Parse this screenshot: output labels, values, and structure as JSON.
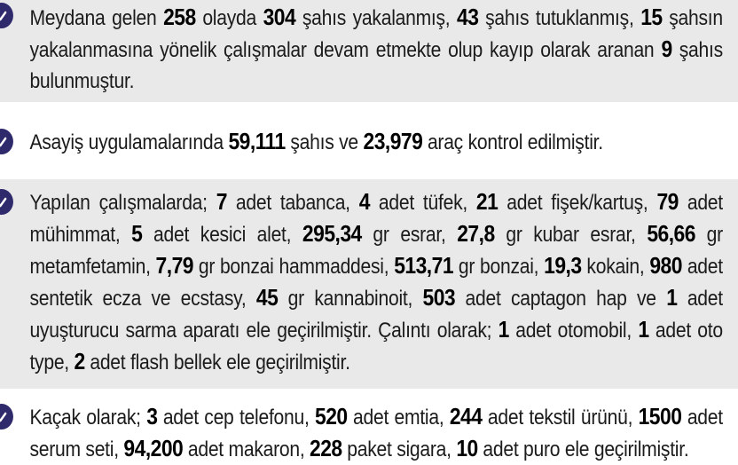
{
  "page": {
    "language": "tr",
    "background": "#ffffff",
    "shaded_block_color": "#e9e9e9",
    "badge_color": "#2f2a6c",
    "text_color": "#1b1b1b",
    "bold_text_color": "#000000",
    "badge_icon": "check-circle-icon"
  },
  "bullets": [
    {
      "shaded": true,
      "segments": [
        {
          "t": "Meydana gelen "
        },
        {
          "t": "258",
          "b": true
        },
        {
          "t": " olayda "
        },
        {
          "t": "304",
          "b": true
        },
        {
          "t": " şahıs yakalanmış, "
        },
        {
          "t": "43",
          "b": true
        },
        {
          "t": " şahıs tutuklanmış, "
        },
        {
          "t": "15",
          "b": true
        },
        {
          "t": " şahsın yakalanmasına yönelik çalışmalar devam etmekte olup kayıp olarak aranan "
        },
        {
          "t": "9",
          "b": true
        },
        {
          "t": " şahıs bulunmuştur."
        }
      ]
    },
    {
      "shaded": false,
      "segments": [
        {
          "t": "Asayiş uygulamalarında "
        },
        {
          "t": "59,111",
          "b": true
        },
        {
          "t": " şahıs ve "
        },
        {
          "t": "23,979",
          "b": true
        },
        {
          "t": " araç kontrol edilmiştir."
        }
      ]
    },
    {
      "shaded": true,
      "segments": [
        {
          "t": "Yapılan çalışmalarda; "
        },
        {
          "t": "7",
          "b": true
        },
        {
          "t": " adet tabanca, "
        },
        {
          "t": "4",
          "b": true
        },
        {
          "t": " adet tüfek, "
        },
        {
          "t": "21",
          "b": true
        },
        {
          "t": " adet fişek/kartuş, "
        },
        {
          "t": "79",
          "b": true
        },
        {
          "t": " adet mühimmat, "
        },
        {
          "t": "5",
          "b": true
        },
        {
          "t": " adet kesici alet, "
        },
        {
          "t": "295,34",
          "b": true
        },
        {
          "t": " gr esrar, "
        },
        {
          "t": "27,8",
          "b": true
        },
        {
          "t": " gr kubar esrar, "
        },
        {
          "t": "56,66",
          "b": true
        },
        {
          "t": " gr metamfetamin, "
        },
        {
          "t": "7,79",
          "b": true
        },
        {
          "t": " gr bonzai hammaddesi, "
        },
        {
          "t": "513,71",
          "b": true
        },
        {
          "t": " gr bonzai, "
        },
        {
          "t": "19,3",
          "b": true
        },
        {
          "t": " kokain, "
        },
        {
          "t": "980",
          "b": true
        },
        {
          "t": " adet sentetik ecza ve ecstasy, "
        },
        {
          "t": "45",
          "b": true
        },
        {
          "t": " gr kannabinoit, "
        },
        {
          "t": "503",
          "b": true
        },
        {
          "t": " adet captagon hap ve "
        },
        {
          "t": "1",
          "b": true
        },
        {
          "t": " adet uyuşturucu sarma aparatı ele geçirilmiştir. Çalıntı olarak; "
        },
        {
          "t": "1",
          "b": true
        },
        {
          "t": " adet otomobil, "
        },
        {
          "t": "1",
          "b": true
        },
        {
          "t": " adet oto type, "
        },
        {
          "t": "2",
          "b": true
        },
        {
          "t": " adet flash bellek ele geçirilmiştir."
        }
      ]
    },
    {
      "shaded": false,
      "segments": [
        {
          "t": "Kaçak olarak; "
        },
        {
          "t": "3",
          "b": true
        },
        {
          "t": " adet cep telefonu, "
        },
        {
          "t": "520",
          "b": true
        },
        {
          "t": " adet emtia, "
        },
        {
          "t": "244",
          "b": true
        },
        {
          "t": " adet tekstil ürünü, "
        },
        {
          "t": "1500",
          "b": true
        },
        {
          "t": " adet serum seti, "
        },
        {
          "t": "94,200",
          "b": true
        },
        {
          "t": " adet makaron, "
        },
        {
          "t": "228",
          "b": true
        },
        {
          "t": " paket sigara, "
        },
        {
          "t": "10",
          "b": true
        },
        {
          "t": " adet puro ele geçirilmiştir."
        }
      ]
    }
  ]
}
